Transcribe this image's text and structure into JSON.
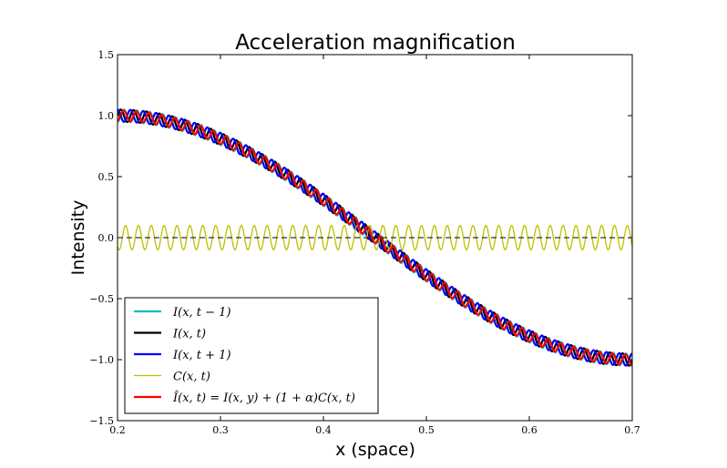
{
  "chart_data": {
    "type": "line",
    "title": "Acceleration magnification",
    "xlabel": "x (space)",
    "ylabel": "Intensity",
    "xlim": [
      0.2,
      0.7
    ],
    "ylim": [
      -1.5,
      1.5
    ],
    "x_ticks": [
      "0.2",
      "0.3",
      "0.4",
      "0.5",
      "0.6",
      "0.7"
    ],
    "y_ticks": [
      "1.5",
      "1.0",
      "0.5",
      "0.0",
      "−0.5",
      "−1.0",
      "−1.5"
    ],
    "grid": false,
    "legend_position": "lower-left",
    "model": {
      "base": "cos(pi*(x-0.2)/0.5)",
      "ripple_frequency_cycles_per_unit": 80,
      "alpha": 4
    },
    "series": [
      {
        "name": "I(x, t − 1)",
        "color": "#00bfbf",
        "width": 2.2,
        "ripple_amplitude": 0.05,
        "ripple_phase_deg": -90
      },
      {
        "name": "I(x, t)",
        "color": "#000000",
        "width": 2.2,
        "ripple_amplitude": 0.05,
        "ripple_phase_deg": 0
      },
      {
        "name": "I(x, t + 1)",
        "color": "#0000ff",
        "width": 2.2,
        "ripple_amplitude": 0.05,
        "ripple_phase_deg": 90
      },
      {
        "name": "C(x, t)",
        "color": "#bfbf00",
        "width": 1.3,
        "ripple_amplitude": 0.1,
        "ripple_phase_deg": -135,
        "no_base": true
      },
      {
        "name": "Î(x, t) = I(x, y) + (1 + α)C(x, t)",
        "color": "#ff0000",
        "width": 2.2,
        "ripple_amplitude": 0.05,
        "ripple_phase_deg": 0,
        "magnified": true
      }
    ],
    "reference_line": {
      "y": 0.0,
      "style": "dashed",
      "color": "#000000"
    }
  }
}
